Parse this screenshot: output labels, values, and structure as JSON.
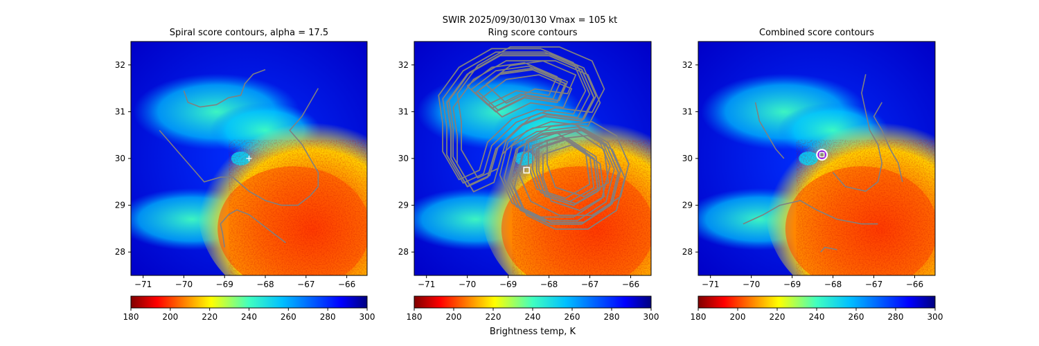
{
  "figure": {
    "suptitle": "SWIR  2025/09/30/0130    Vmax = 105 kt",
    "colorbar_label": "Brightness temp, K"
  },
  "chart_data": [
    {
      "type": "heatmap",
      "title": "Spiral score contours, alpha = 17.5",
      "xlim": [
        -71.3,
        -65.5
      ],
      "ylim": [
        27.5,
        32.5
      ],
      "xticks": [
        -71,
        -70,
        -69,
        -68,
        -67,
        -66
      ],
      "yticks": [
        28,
        29,
        30,
        31,
        32
      ],
      "colorbar": {
        "min": 180,
        "max": 300,
        "ticks": [
          180,
          200,
          220,
          240,
          260,
          280,
          300
        ],
        "colormap": "jet_r"
      },
      "marker": {
        "type": "plus",
        "x": -68.4,
        "y": 30.0,
        "color": "#ffffff"
      },
      "contour_color": "#808080"
    },
    {
      "type": "heatmap",
      "title": "Ring score contours",
      "xlim": [
        -71.3,
        -65.5
      ],
      "ylim": [
        27.5,
        32.5
      ],
      "xticks": [
        -71,
        -70,
        -69,
        -68,
        -67,
        -66
      ],
      "yticks": [
        28,
        29,
        30,
        31,
        32
      ],
      "colorbar": {
        "min": 180,
        "max": 300,
        "ticks": [
          180,
          200,
          220,
          240,
          260,
          280,
          300
        ],
        "colormap": "jet_r"
      },
      "marker": {
        "type": "square",
        "x": -68.55,
        "y": 29.75,
        "color": "#ffffff"
      },
      "contour_color": "#808080"
    },
    {
      "type": "heatmap",
      "title": "Combined score contours",
      "xlim": [
        -71.3,
        -65.5
      ],
      "ylim": [
        27.5,
        32.5
      ],
      "xticks": [
        -71,
        -70,
        -69,
        -68,
        -67,
        -66
      ],
      "yticks": [
        28,
        29,
        30,
        31,
        32
      ],
      "colorbar": {
        "min": 180,
        "max": 300,
        "ticks": [
          180,
          200,
          220,
          240,
          260,
          280,
          300
        ],
        "colormap": "jet_r"
      },
      "marker": {
        "type": "circle-square",
        "x": -68.27,
        "y": 30.08,
        "color": "#ffffff",
        "ring_color": "#a020f0"
      },
      "contour_color": "#808080"
    }
  ]
}
